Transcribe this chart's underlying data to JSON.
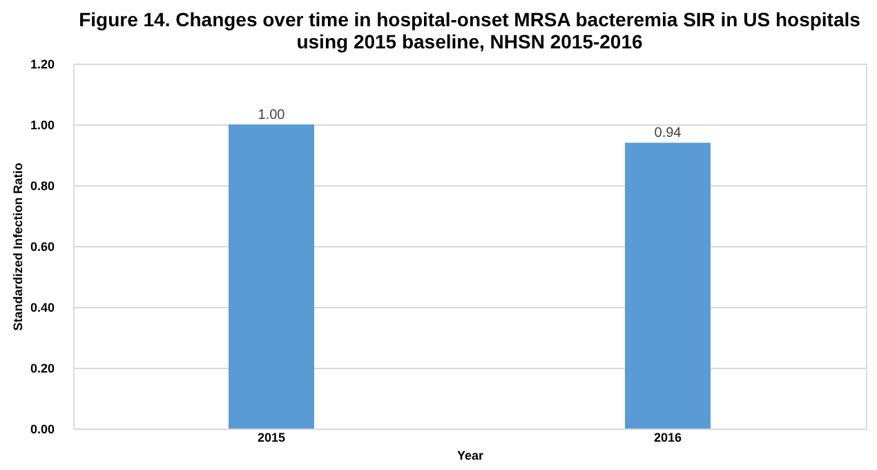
{
  "chart_data": {
    "type": "bar",
    "title": "Figure 14. Changes over time in hospital-onset MRSA bacteremia SIR in US hospitals\nusing 2015 baseline, NHSN 2015-2016",
    "categories": [
      "2015",
      "2016"
    ],
    "values": [
      1.0,
      0.94
    ],
    "value_labels": [
      "1.00",
      "0.94"
    ],
    "color": "#5b9bd5",
    "xlabel": "Year",
    "ylabel": "Standardized Infection Ratio",
    "ylim": [
      0,
      1.2
    ],
    "yticks": [
      {
        "value": 0,
        "label": "0.00"
      },
      {
        "value": 0.2,
        "label": "0.20"
      },
      {
        "value": 0.4,
        "label": "0.40"
      },
      {
        "value": 0.6,
        "label": "0.60"
      },
      {
        "value": 0.8,
        "label": "0.80"
      },
      {
        "value": 1.0,
        "label": "1.00"
      },
      {
        "value": 1.2,
        "label": "1.20"
      }
    ],
    "grid": "y"
  }
}
